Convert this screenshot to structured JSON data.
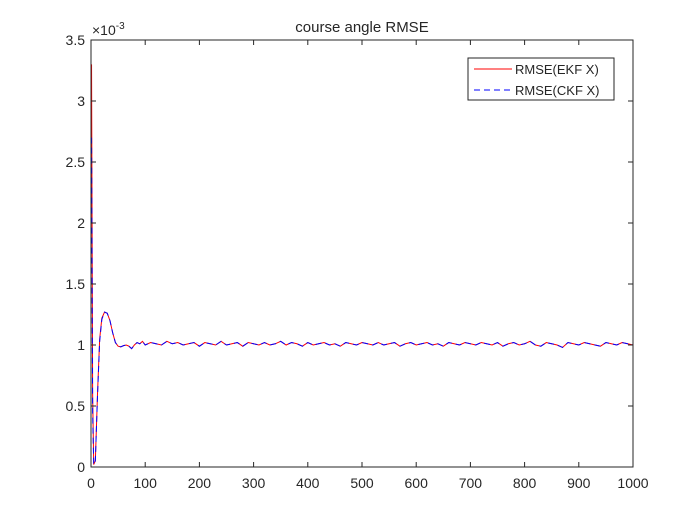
{
  "figure": {
    "background_color": "#ffffff",
    "axes_color": "#262626"
  },
  "chart_data": {
    "type": "line",
    "title": "course angle RMSE",
    "xlabel": "",
    "ylabel": "",
    "xlim": [
      0,
      1000
    ],
    "ylim": [
      0,
      3.5
    ],
    "y_exponent_label": "×10",
    "y_exponent_value": "-3",
    "y_scale_factor": 0.001,
    "x_ticks": [
      0,
      100,
      200,
      300,
      400,
      500,
      600,
      700,
      800,
      900,
      1000
    ],
    "x_tick_labels": [
      "0",
      "100",
      "200",
      "300",
      "400",
      "500",
      "600",
      "700",
      "800",
      "900",
      "1000"
    ],
    "y_ticks": [
      0,
      0.5,
      1,
      1.5,
      2,
      2.5,
      3,
      3.5
    ],
    "y_tick_labels": [
      "0",
      "0.5",
      "1",
      "1.5",
      "2",
      "2.5",
      "3",
      "3.5"
    ],
    "grid": false,
    "box": true,
    "legend": {
      "position": "top-right",
      "entries": [
        "RMSE(EKF X)",
        "RMSE(CKF X)"
      ]
    },
    "series": [
      {
        "name": "RMSE(EKF X)",
        "color": "#ff0000",
        "style": "solid",
        "x": [
          1,
          2,
          3,
          5,
          8,
          12,
          16,
          20,
          25,
          30,
          35,
          40,
          45,
          50,
          55,
          60,
          65,
          70,
          75,
          80,
          85,
          90,
          95,
          100,
          110,
          120,
          130,
          140,
          150,
          160,
          170,
          180,
          190,
          200,
          210,
          220,
          230,
          240,
          250,
          260,
          270,
          280,
          290,
          300,
          310,
          320,
          330,
          340,
          350,
          360,
          370,
          380,
          390,
          400,
          410,
          420,
          430,
          440,
          450,
          460,
          470,
          480,
          490,
          500,
          510,
          520,
          530,
          540,
          550,
          560,
          570,
          580,
          590,
          600,
          610,
          620,
          630,
          640,
          650,
          660,
          670,
          680,
          690,
          700,
          710,
          720,
          730,
          740,
          750,
          760,
          770,
          780,
          790,
          800,
          810,
          820,
          830,
          840,
          850,
          860,
          870,
          880,
          890,
          900,
          910,
          920,
          930,
          940,
          950,
          960,
          970,
          980,
          990,
          1000
        ],
        "y": [
          3.3,
          2.0,
          0.6,
          0.02,
          0.05,
          0.6,
          1.05,
          1.22,
          1.27,
          1.26,
          1.2,
          1.1,
          1.02,
          0.99,
          0.985,
          0.995,
          1.0,
          0.99,
          0.97,
          1.0,
          1.02,
          1.01,
          1.03,
          1.0,
          1.02,
          1.01,
          1.0,
          1.03,
          1.01,
          1.02,
          1.0,
          1.01,
          1.02,
          0.99,
          1.02,
          1.01,
          1.0,
          1.03,
          1.0,
          1.01,
          1.02,
          0.99,
          1.02,
          1.01,
          1.0,
          1.02,
          1.0,
          1.01,
          1.03,
          1.0,
          1.02,
          1.01,
          0.99,
          1.02,
          1.0,
          1.01,
          1.02,
          1.0,
          1.01,
          0.99,
          1.02,
          1.01,
          1.0,
          1.02,
          1.01,
          1.0,
          1.02,
          1.0,
          1.01,
          1.02,
          0.99,
          1.01,
          1.02,
          1.0,
          1.01,
          1.02,
          1.0,
          1.01,
          0.99,
          1.02,
          1.01,
          1.0,
          1.02,
          1.01,
          1.0,
          1.02,
          1.01,
          1.0,
          1.02,
          0.99,
          1.01,
          1.02,
          1.0,
          1.01,
          1.03,
          1.0,
          0.99,
          1.02,
          1.01,
          1.0,
          0.98,
          1.02,
          1.01,
          1.0,
          1.02,
          1.01,
          1.0,
          0.99,
          1.02,
          1.01,
          1.0,
          1.02,
          1.01,
          1.0
        ]
      },
      {
        "name": "RMSE(CKF X)",
        "color": "#0000ff",
        "style": "dashed",
        "x": [
          1,
          2,
          3,
          5,
          8,
          12,
          16,
          20,
          25,
          30,
          35,
          40,
          45,
          50,
          55,
          60,
          65,
          70,
          75,
          80,
          85,
          90,
          95,
          100,
          110,
          120,
          130,
          140,
          150,
          160,
          170,
          180,
          190,
          200,
          210,
          220,
          230,
          240,
          250,
          260,
          270,
          280,
          290,
          300,
          310,
          320,
          330,
          340,
          350,
          360,
          370,
          380,
          390,
          400,
          410,
          420,
          430,
          440,
          450,
          460,
          470,
          480,
          490,
          500,
          510,
          520,
          530,
          540,
          550,
          560,
          570,
          580,
          590,
          600,
          610,
          620,
          630,
          640,
          650,
          660,
          670,
          680,
          690,
          700,
          710,
          720,
          730,
          740,
          750,
          760,
          770,
          780,
          790,
          800,
          810,
          820,
          830,
          840,
          850,
          860,
          870,
          880,
          890,
          900,
          910,
          920,
          930,
          940,
          950,
          960,
          970,
          980,
          990,
          1000
        ],
        "y": [
          2.7,
          1.6,
          0.45,
          0.02,
          0.05,
          0.58,
          1.03,
          1.21,
          1.27,
          1.26,
          1.2,
          1.1,
          1.02,
          0.99,
          0.985,
          0.995,
          1.0,
          0.99,
          0.97,
          1.0,
          1.02,
          1.01,
          1.03,
          1.0,
          1.02,
          1.01,
          1.0,
          1.03,
          1.01,
          1.02,
          1.0,
          1.01,
          1.02,
          0.99,
          1.02,
          1.01,
          1.0,
          1.03,
          1.0,
          1.01,
          1.02,
          0.99,
          1.02,
          1.01,
          1.0,
          1.02,
          1.0,
          1.01,
          1.03,
          1.0,
          1.02,
          1.01,
          0.99,
          1.02,
          1.0,
          1.01,
          1.02,
          1.0,
          1.01,
          0.99,
          1.02,
          1.01,
          1.0,
          1.02,
          1.01,
          1.0,
          1.02,
          1.0,
          1.01,
          1.02,
          0.99,
          1.01,
          1.02,
          1.0,
          1.01,
          1.02,
          1.0,
          1.01,
          0.99,
          1.02,
          1.01,
          1.0,
          1.02,
          1.01,
          1.0,
          1.02,
          1.01,
          1.0,
          1.02,
          0.99,
          1.01,
          1.02,
          1.0,
          1.01,
          1.03,
          1.0,
          0.99,
          1.02,
          1.01,
          1.0,
          0.98,
          1.02,
          1.01,
          1.0,
          1.02,
          1.01,
          1.0,
          0.99,
          1.02,
          1.01,
          1.0,
          1.02,
          1.01,
          1.0
        ]
      }
    ]
  }
}
